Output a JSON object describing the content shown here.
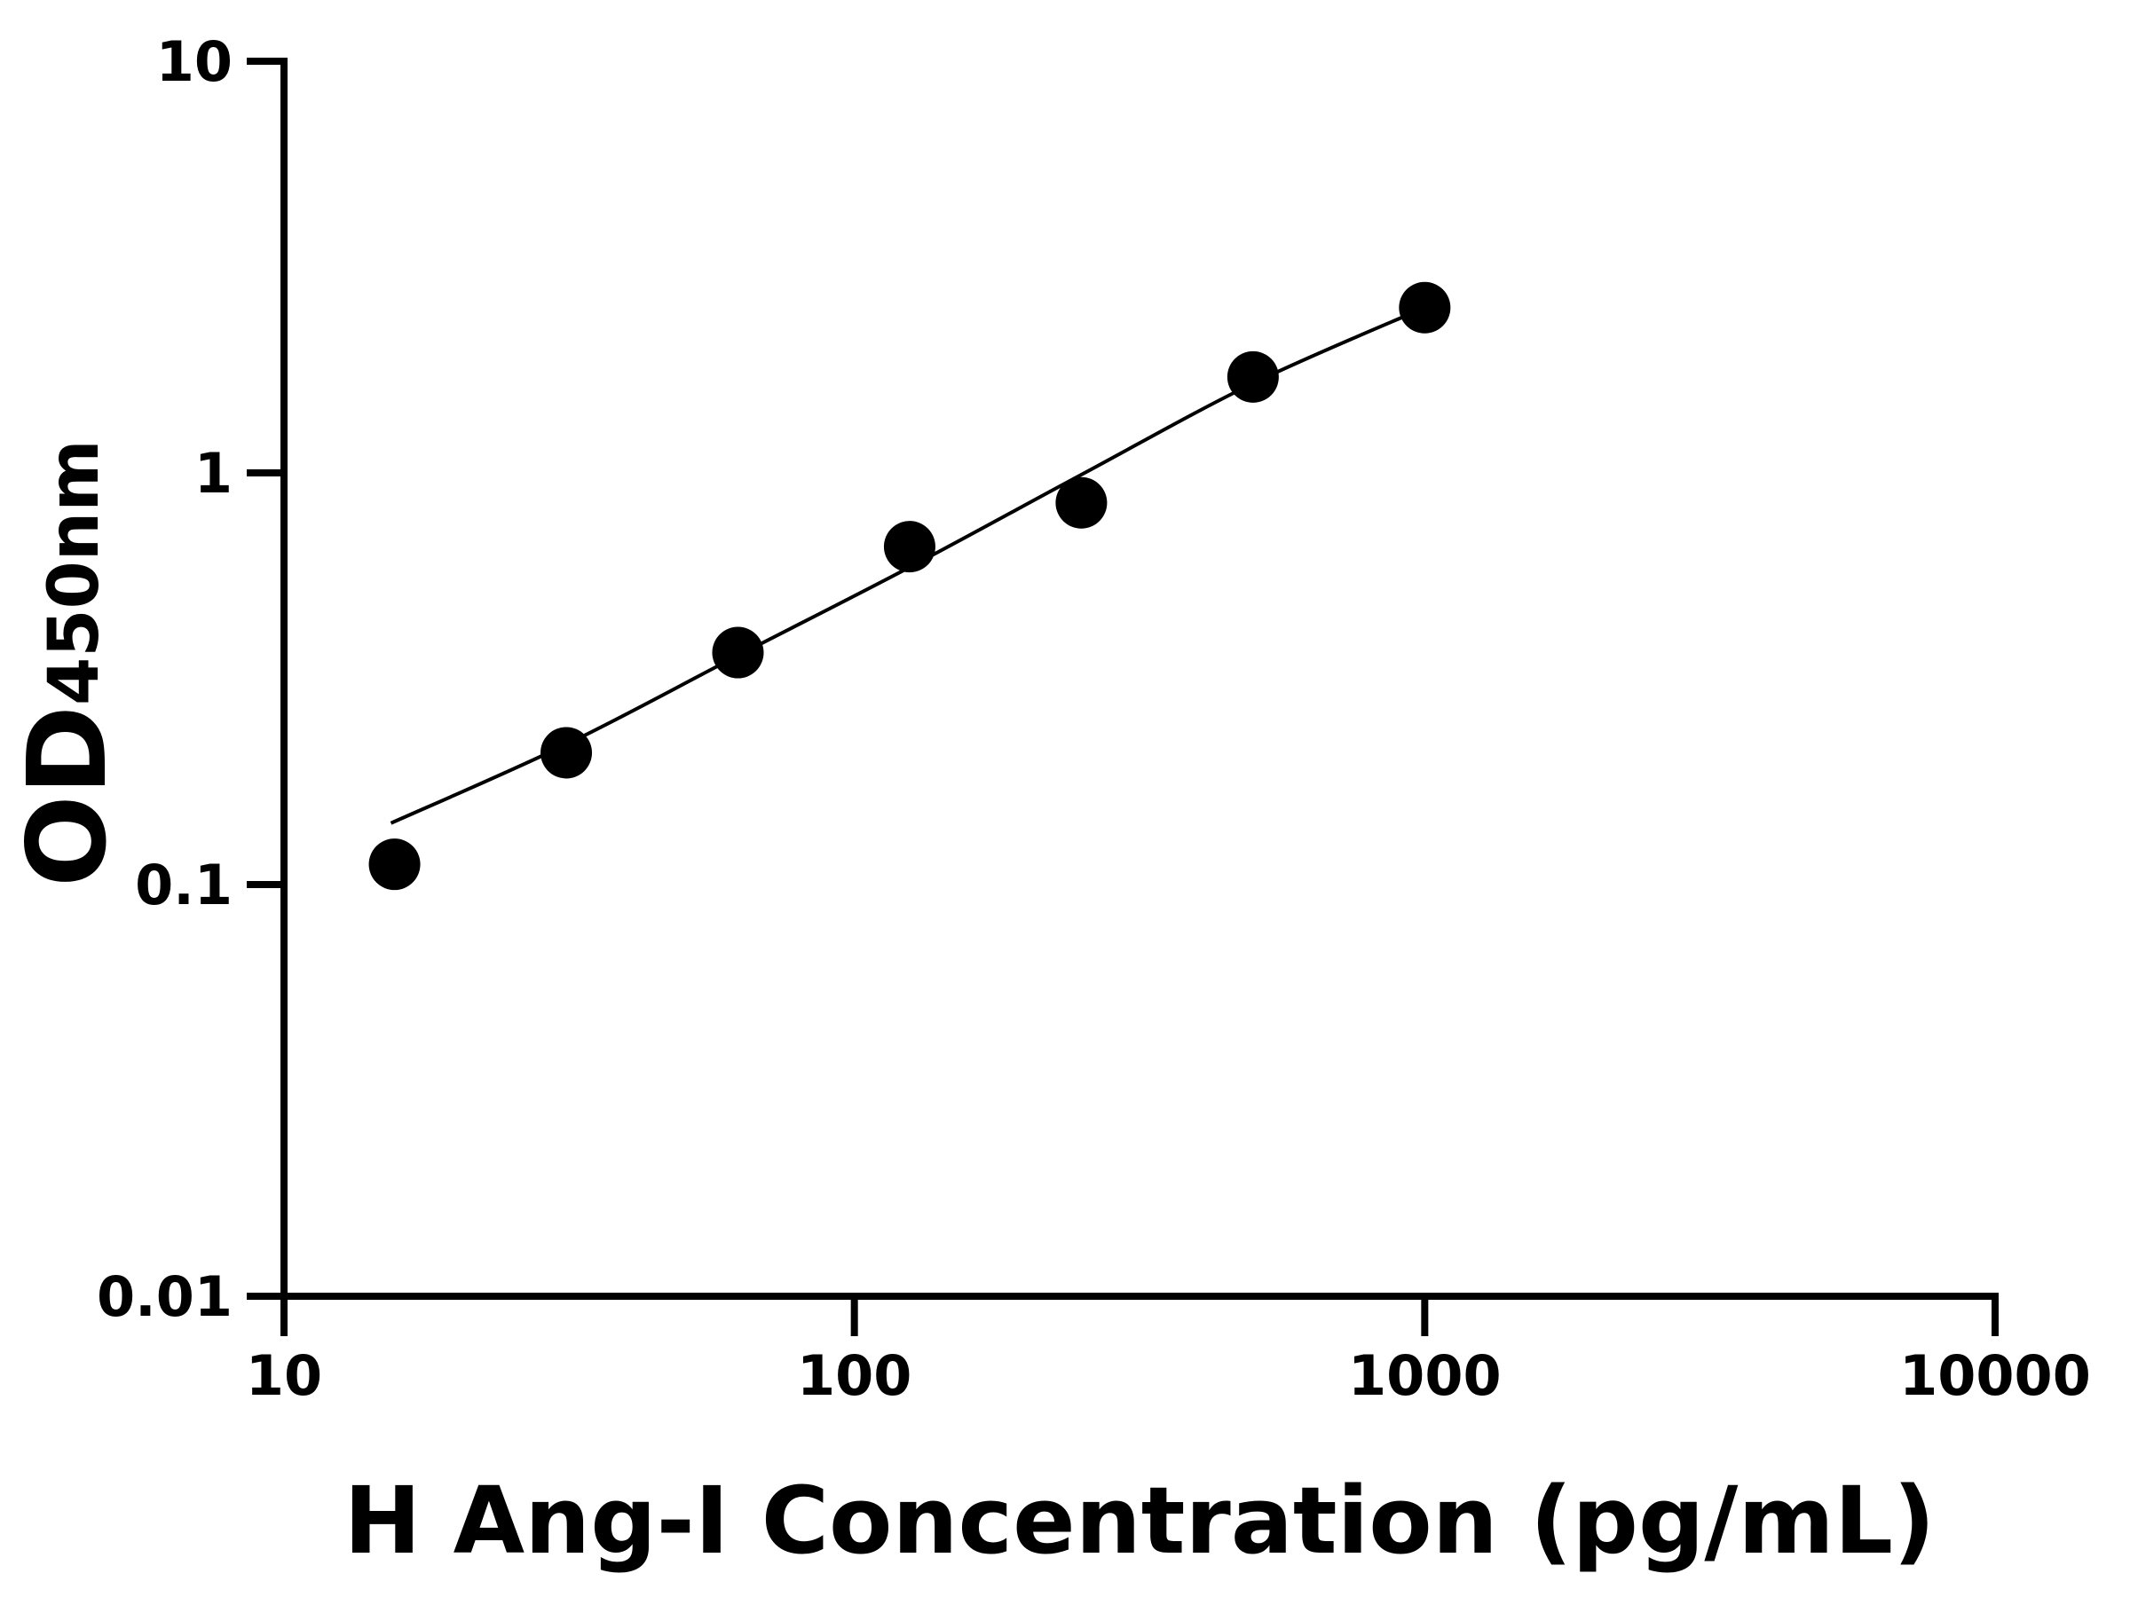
{
  "chart_data": {
    "type": "scatter",
    "title": "",
    "xlabel": "H Ang-I Concentration (pg/mL)",
    "ylabel": "OD",
    "ylabel_subscript": "450nm",
    "x_scale": "log",
    "y_scale": "log",
    "xlim": [
      10,
      10000
    ],
    "ylim": [
      0.01,
      10
    ],
    "x_ticks": [
      "10",
      "100",
      "1000",
      "10000"
    ],
    "y_ticks": [
      "10",
      "1",
      "0.1",
      "0.01"
    ],
    "grid": false,
    "legend": "none",
    "series": [
      {
        "x": [
          15.625,
          31.25,
          62.5,
          125,
          250,
          500,
          1000
        ],
        "y": [
          0.112,
          0.209,
          0.366,
          0.662,
          0.846,
          1.71,
          2.52
        ]
      }
    ],
    "fit_curve": {
      "x": [
        15.4,
        31.25,
        62.5,
        125,
        250,
        500,
        1000
      ],
      "y": [
        0.141,
        0.219,
        0.36,
        0.59,
        0.99,
        1.65,
        2.52
      ]
    },
    "colors": {
      "marker": "#000000",
      "line": "#000000",
      "axis": "#000000"
    }
  }
}
